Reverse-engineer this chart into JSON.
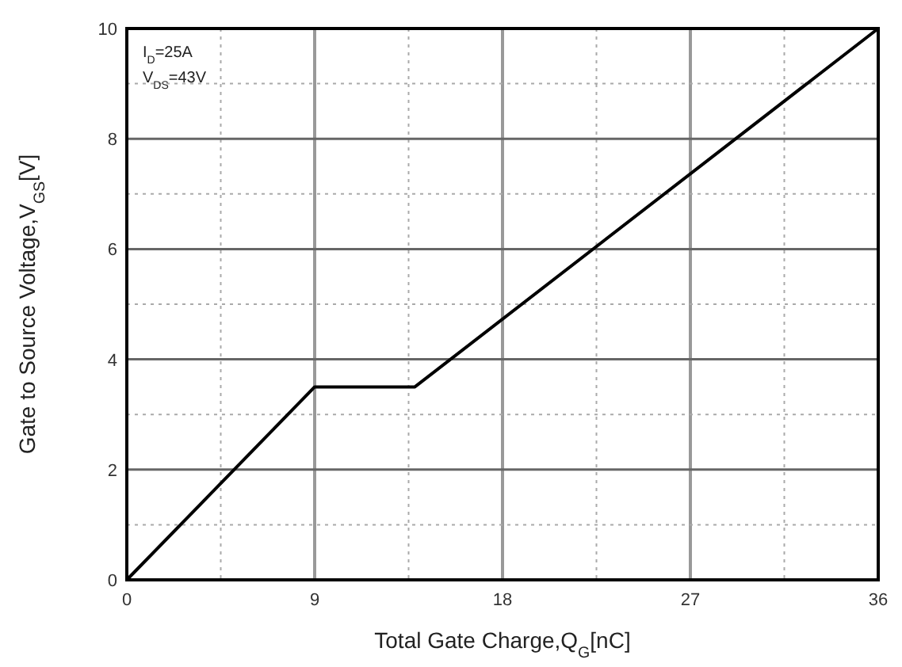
{
  "chart_data": {
    "type": "line",
    "xlabel": "Total  Gate Charge,Q$_{G}$[nC]",
    "ylabel": "Gate to Source Voltage,V$_{GS}$[V]",
    "annotations": [
      "I$_{D}$=25A",
      "V$_{DS}$=43V"
    ],
    "x": [
      0,
      9,
      13.8,
      36
    ],
    "series": [
      {
        "color": "#000000",
        "values": [
          0,
          3.5,
          3.5,
          10
        ]
      }
    ],
    "xlim": [
      0,
      36
    ],
    "ylim": [
      0,
      10
    ],
    "xticks": [
      0,
      {
        "value": 4.5,
        "label": null
      },
      9,
      {
        "value": 13.5,
        "label": null
      },
      18,
      {
        "value": 22.5,
        "label": null
      },
      27,
      {
        "value": 31.5,
        "label": null
      },
      36
    ],
    "yticks": [
      0,
      {
        "value": 1,
        "label": null
      },
      2,
      {
        "value": 3,
        "label": null
      },
      4,
      {
        "value": 5,
        "label": null
      },
      6,
      {
        "value": 7,
        "label": null
      },
      8,
      {
        "value": 9,
        "label": null
      },
      10
    ],
    "grid": true,
    "marker": "none",
    "line_style": "solid"
  }
}
